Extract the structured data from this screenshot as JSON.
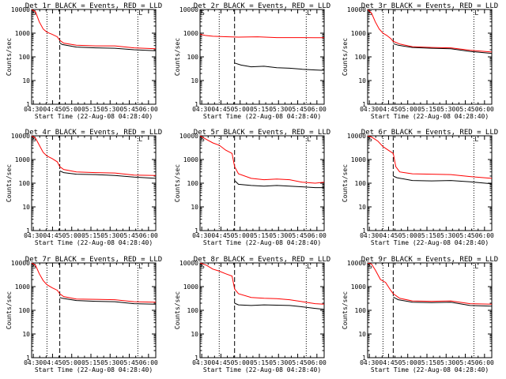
{
  "figure": {
    "xlabel": "Start Time (22-Aug-08 04:28:40)",
    "ylabel": "Counts/sec",
    "x_tick_labels": [
      "04:30",
      "04:45",
      "05:00",
      "05:15",
      "05:30",
      "05:45",
      "06:00"
    ],
    "y_tick_labels": [
      "1",
      "10",
      "100",
      "1000",
      "10000"
    ],
    "colors": {
      "events": "#000000",
      "lld": "#ff0000",
      "frame": "#000000"
    },
    "corner_marks": [
      "S",
      "L"
    ]
  },
  "chart_data": [
    {
      "type": "line",
      "title": "Det 1r BLACK = Events, RED = LLD",
      "xlabel": "Start Time (22-Aug-08 04:28:40)",
      "ylabel": "Counts/sec",
      "x_unit": "minutes after 04:28:40",
      "xlim": [
        0,
        97
      ],
      "ylim": [
        1,
        10000
      ],
      "yscale": "log",
      "markers": {
        "dotted": [
          12,
          83
        ],
        "dashed": [
          22
        ]
      },
      "series": [
        {
          "color": "#ff0000",
          "points": [
            [
              0,
              10000
            ],
            [
              3,
              8000
            ],
            [
              6,
              3000
            ],
            [
              9,
              1500
            ],
            [
              12,
              1100
            ],
            [
              16,
              900
            ],
            [
              20,
              700
            ],
            [
              22,
              500
            ],
            [
              25,
              380
            ],
            [
              35,
              310
            ],
            [
              50,
              290
            ],
            [
              65,
              290
            ],
            [
              80,
              240
            ],
            [
              97,
              220
            ]
          ]
        },
        {
          "color": "#000000",
          "points": [
            [
              22,
              380
            ],
            [
              24,
              330
            ],
            [
              35,
              260
            ],
            [
              50,
              240
            ],
            [
              65,
              230
            ],
            [
              80,
              200
            ],
            [
              97,
              180
            ]
          ]
        }
      ]
    },
    {
      "type": "line",
      "title": "Det 2r BLACK = Events, RED = LLD",
      "xlabel": "Start Time (22-Aug-08 04:28:40)",
      "ylabel": "Counts/sec",
      "x_unit": "minutes after 04:28:40",
      "xlim": [
        0,
        97
      ],
      "ylim": [
        1,
        10000
      ],
      "yscale": "log",
      "markers": {
        "dotted": [
          15,
          83
        ],
        "dashed": [
          27
        ]
      },
      "series": [
        {
          "color": "#ff0000",
          "points": [
            [
              0,
              900
            ],
            [
              4,
              800
            ],
            [
              10,
              740
            ],
            [
              20,
              710
            ],
            [
              30,
              680
            ],
            [
              45,
              700
            ],
            [
              60,
              650
            ],
            [
              75,
              650
            ],
            [
              90,
              640
            ],
            [
              97,
              640
            ]
          ]
        },
        {
          "color": "#000000",
          "points": [
            [
              27,
              55
            ],
            [
              32,
              45
            ],
            [
              40,
              38
            ],
            [
              50,
              40
            ],
            [
              60,
              35
            ],
            [
              70,
              33
            ],
            [
              80,
              30
            ],
            [
              90,
              28
            ],
            [
              97,
              27
            ]
          ]
        }
      ]
    },
    {
      "type": "line",
      "title": "Det 3r BLACK = Events, RED = LLD",
      "xlabel": "Start Time (22-Aug-08 04:28:40)",
      "ylabel": "Counts/sec",
      "x_unit": "minutes after 04:28:40",
      "xlim": [
        0,
        97
      ],
      "ylim": [
        1,
        10000
      ],
      "yscale": "log",
      "markers": {
        "dotted": [
          12,
          83
        ],
        "dashed": [
          20
        ]
      },
      "series": [
        {
          "color": "#ff0000",
          "points": [
            [
              0,
              10000
            ],
            [
              3,
              7000
            ],
            [
              6,
              3000
            ],
            [
              9,
              1500
            ],
            [
              12,
              1000
            ],
            [
              15,
              800
            ],
            [
              18,
              600
            ],
            [
              20,
              450
            ],
            [
              25,
              350
            ],
            [
              35,
              270
            ],
            [
              50,
              250
            ],
            [
              65,
              240
            ],
            [
              80,
              190
            ],
            [
              97,
              160
            ]
          ]
        },
        {
          "color": "#000000",
          "points": [
            [
              20,
              360
            ],
            [
              24,
              310
            ],
            [
              35,
              250
            ],
            [
              50,
              230
            ],
            [
              65,
              220
            ],
            [
              80,
              170
            ],
            [
              97,
              140
            ]
          ]
        }
      ]
    },
    {
      "type": "line",
      "title": "Det 4r BLACK = Events, RED = LLD",
      "xlabel": "Start Time (22-Aug-08 04:28:40)",
      "ylabel": "Counts/sec",
      "x_unit": "minutes after 04:28:40",
      "xlim": [
        0,
        97
      ],
      "ylim": [
        1,
        10000
      ],
      "yscale": "log",
      "markers": {
        "dotted": [
          12,
          83
        ],
        "dashed": [
          22
        ]
      },
      "series": [
        {
          "color": "#ff0000",
          "points": [
            [
              0,
              10000
            ],
            [
              3,
              8000
            ],
            [
              6,
              4000
            ],
            [
              9,
              2000
            ],
            [
              12,
              1400
            ],
            [
              16,
              1100
            ],
            [
              20,
              800
            ],
            [
              22,
              500
            ],
            [
              25,
              380
            ],
            [
              35,
              300
            ],
            [
              50,
              280
            ],
            [
              65,
              270
            ],
            [
              80,
              220
            ],
            [
              97,
              210
            ]
          ]
        },
        {
          "color": "#000000",
          "points": [
            [
              22,
              330
            ],
            [
              25,
              280
            ],
            [
              35,
              240
            ],
            [
              50,
              230
            ],
            [
              65,
              210
            ],
            [
              80,
              180
            ],
            [
              97,
              160
            ]
          ]
        }
      ]
    },
    {
      "type": "line",
      "title": "Det 5r BLACK = Events, RED = LLD",
      "xlabel": "Start Time (22-Aug-08 04:28:40)",
      "ylabel": "Counts/sec",
      "x_unit": "minutes after 04:28:40",
      "xlim": [
        0,
        97
      ],
      "ylim": [
        1,
        10000
      ],
      "yscale": "log",
      "markers": {
        "dotted": [
          15,
          83
        ],
        "dashed": [
          27
        ]
      },
      "series": [
        {
          "color": "#ff0000",
          "points": [
            [
              0,
              10000
            ],
            [
              5,
              7000
            ],
            [
              10,
              5000
            ],
            [
              15,
              4000
            ],
            [
              20,
              2500
            ],
            [
              25,
              1800
            ],
            [
              27,
              500
            ],
            [
              30,
              250
            ],
            [
              40,
              160
            ],
            [
              50,
              140
            ],
            [
              60,
              150
            ],
            [
              70,
              140
            ],
            [
              80,
              110
            ],
            [
              90,
              100
            ],
            [
              97,
              110
            ]
          ]
        },
        {
          "color": "#000000",
          "points": [
            [
              27,
              130
            ],
            [
              30,
              90
            ],
            [
              40,
              80
            ],
            [
              50,
              75
            ],
            [
              60,
              80
            ],
            [
              70,
              75
            ],
            [
              80,
              70
            ],
            [
              90,
              65
            ],
            [
              97,
              65
            ]
          ]
        }
      ]
    },
    {
      "type": "line",
      "title": "Det 6r BLACK = Events, RED = LLD",
      "xlabel": "Start Time (22-Aug-08 04:28:40)",
      "ylabel": "Counts/sec",
      "x_unit": "minutes after 04:28:40",
      "xlim": [
        0,
        97
      ],
      "ylim": [
        1,
        10000
      ],
      "yscale": "log",
      "markers": {
        "dotted": [
          12,
          83
        ],
        "dashed": [
          20
        ]
      },
      "series": [
        {
          "color": "#ff0000",
          "points": [
            [
              0,
              10000
            ],
            [
              3,
              9000
            ],
            [
              8,
              6000
            ],
            [
              12,
              3500
            ],
            [
              16,
              2500
            ],
            [
              20,
              1800
            ],
            [
              22,
              500
            ],
            [
              25,
              300
            ],
            [
              35,
              250
            ],
            [
              50,
              240
            ],
            [
              65,
              230
            ],
            [
              80,
              190
            ],
            [
              97,
              160
            ]
          ]
        },
        {
          "color": "#000000",
          "points": [
            [
              20,
              200
            ],
            [
              23,
              170
            ],
            [
              35,
              130
            ],
            [
              50,
              125
            ],
            [
              65,
              130
            ],
            [
              80,
              115
            ],
            [
              97,
              95
            ]
          ]
        }
      ]
    },
    {
      "type": "line",
      "title": "Det 7r BLACK = Events, RED = LLD",
      "xlabel": "Start Time (22-Aug-08 04:28:40)",
      "ylabel": "Counts/sec",
      "x_unit": "minutes after 04:28:40",
      "xlim": [
        0,
        97
      ],
      "ylim": [
        1,
        10000
      ],
      "yscale": "log",
      "markers": {
        "dotted": [
          12,
          83
        ],
        "dashed": [
          22
        ]
      },
      "series": [
        {
          "color": "#ff0000",
          "points": [
            [
              0,
              10000
            ],
            [
              3,
              8000
            ],
            [
              6,
              3500
            ],
            [
              9,
              1800
            ],
            [
              12,
              1200
            ],
            [
              16,
              900
            ],
            [
              20,
              700
            ],
            [
              22,
              500
            ],
            [
              25,
              380
            ],
            [
              35,
              300
            ],
            [
              50,
              290
            ],
            [
              65,
              280
            ],
            [
              80,
              230
            ],
            [
              97,
              220
            ]
          ]
        },
        {
          "color": "#000000",
          "points": [
            [
              22,
              350
            ],
            [
              24,
              320
            ],
            [
              35,
              260
            ],
            [
              50,
              240
            ],
            [
              65,
              230
            ],
            [
              80,
              190
            ],
            [
              97,
              180
            ]
          ]
        }
      ]
    },
    {
      "type": "line",
      "title": "Det 8r BLACK = Events, RED = LLD",
      "xlabel": "Start Time (22-Aug-08 04:28:40)",
      "ylabel": "Counts/sec",
      "x_unit": "minutes after 04:28:40",
      "xlim": [
        0,
        97
      ],
      "ylim": [
        1,
        10000
      ],
      "yscale": "log",
      "markers": {
        "dotted": [
          15,
          83
        ],
        "dashed": [
          27
        ]
      },
      "series": [
        {
          "color": "#ff0000",
          "points": [
            [
              0,
              10000
            ],
            [
              5,
              8000
            ],
            [
              10,
              5500
            ],
            [
              15,
              4500
            ],
            [
              20,
              3500
            ],
            [
              25,
              2800
            ],
            [
              27,
              800
            ],
            [
              30,
              500
            ],
            [
              40,
              350
            ],
            [
              50,
              320
            ],
            [
              60,
              310
            ],
            [
              70,
              280
            ],
            [
              80,
              230
            ],
            [
              90,
              190
            ],
            [
              97,
              180
            ]
          ]
        },
        {
          "color": "#000000",
          "points": [
            [
              27,
              200
            ],
            [
              30,
              170
            ],
            [
              40,
              160
            ],
            [
              50,
              170
            ],
            [
              60,
              165
            ],
            [
              70,
              160
            ],
            [
              80,
              140
            ],
            [
              90,
              120
            ],
            [
              97,
              110
            ]
          ]
        }
      ]
    },
    {
      "type": "line",
      "title": "Det 9r BLACK = Events, RED = LLD",
      "xlabel": "Start Time (22-Aug-08 04:28:40)",
      "ylabel": "Counts/sec",
      "x_unit": "minutes after 04:28:40",
      "xlim": [
        0,
        97
      ],
      "ylim": [
        1,
        10000
      ],
      "yscale": "log",
      "markers": {
        "dotted": [
          12,
          83
        ],
        "dashed": [
          20
        ]
      },
      "series": [
        {
          "color": "#ff0000",
          "points": [
            [
              0,
              10000
            ],
            [
              3,
              9000
            ],
            [
              6,
              5000
            ],
            [
              10,
              2000
            ],
            [
              14,
              1500
            ],
            [
              18,
              700
            ],
            [
              20,
              500
            ],
            [
              25,
              320
            ],
            [
              35,
              250
            ],
            [
              50,
              240
            ],
            [
              65,
              250
            ],
            [
              80,
              190
            ],
            [
              97,
              180
            ]
          ]
        },
        {
          "color": "#000000",
          "points": [
            [
              20,
              360
            ],
            [
              24,
              280
            ],
            [
              35,
              220
            ],
            [
              50,
              210
            ],
            [
              65,
              220
            ],
            [
              80,
              160
            ],
            [
              97,
              150
            ]
          ]
        }
      ]
    }
  ]
}
